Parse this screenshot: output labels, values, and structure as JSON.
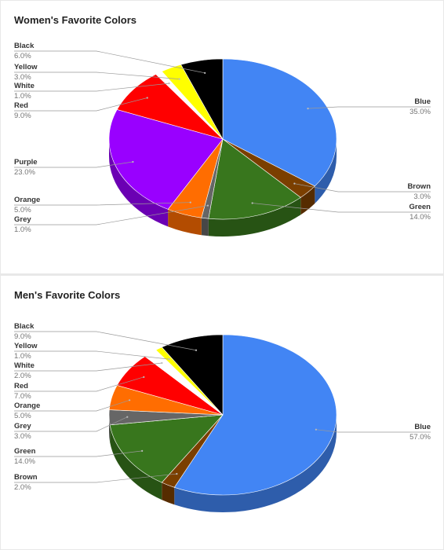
{
  "chart_data": [
    {
      "type": "pie",
      "title": "Women's Favorite Colors",
      "slices": [
        {
          "label": "Blue",
          "value": 35.0,
          "display": "35.0%",
          "color": "#4285f4"
        },
        {
          "label": "Brown",
          "value": 3.0,
          "display": "3.0%",
          "color": "#7b3f00"
        },
        {
          "label": "Green",
          "value": 14.0,
          "display": "14.0%",
          "color": "#38761d"
        },
        {
          "label": "Grey",
          "value": 1.0,
          "display": "1.0%",
          "color": "#666666"
        },
        {
          "label": "Orange",
          "value": 5.0,
          "display": "5.0%",
          "color": "#ff6d01"
        },
        {
          "label": "Purple",
          "value": 23.0,
          "display": "23.0%",
          "color": "#9900ff"
        },
        {
          "label": "Red",
          "value": 9.0,
          "display": "9.0%",
          "color": "#ff0000"
        },
        {
          "label": "White",
          "value": 1.0,
          "display": "1.0%",
          "color": "#ffffff"
        },
        {
          "label": "Yellow",
          "value": 3.0,
          "display": "3.0%",
          "color": "#ffff00"
        },
        {
          "label": "Black",
          "value": 6.0,
          "display": "6.0%",
          "color": "#000000"
        }
      ]
    },
    {
      "type": "pie",
      "title": "Men's Favorite Colors",
      "slices": [
        {
          "label": "Blue",
          "value": 57.0,
          "display": "57.0%",
          "color": "#4285f4"
        },
        {
          "label": "Brown",
          "value": 2.0,
          "display": "2.0%",
          "color": "#7b3f00"
        },
        {
          "label": "Green",
          "value": 14.0,
          "display": "14.0%",
          "color": "#38761d"
        },
        {
          "label": "Grey",
          "value": 3.0,
          "display": "3.0%",
          "color": "#666666"
        },
        {
          "label": "Orange",
          "value": 5.0,
          "display": "5.0%",
          "color": "#ff6d01"
        },
        {
          "label": "Red",
          "value": 7.0,
          "display": "7.0%",
          "color": "#ff0000"
        },
        {
          "label": "White",
          "value": 2.0,
          "display": "2.0%",
          "color": "#ffffff"
        },
        {
          "label": "Yellow",
          "value": 1.0,
          "display": "1.0%",
          "color": "#ffff00"
        },
        {
          "label": "Black",
          "value": 9.0,
          "display": "9.0%",
          "color": "#000000"
        }
      ]
    }
  ]
}
